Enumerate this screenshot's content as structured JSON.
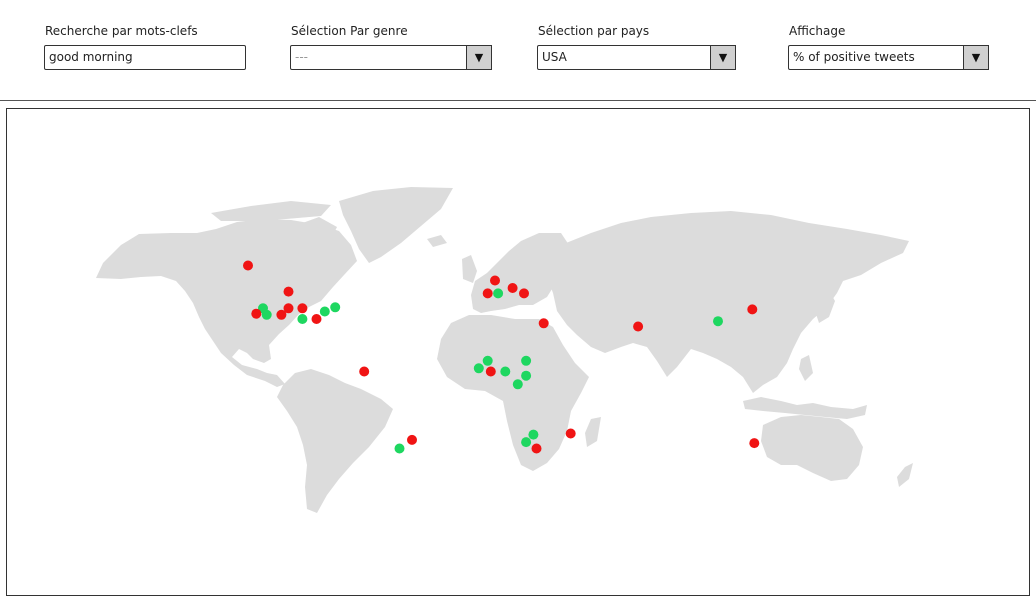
{
  "filters": {
    "keywords": {
      "label": "Recherche par mots-clefs",
      "value": "good morning"
    },
    "genre": {
      "label": "Sélection Par genre",
      "value": "---"
    },
    "country": {
      "label": "Sélection par pays",
      "value": "USA"
    },
    "display": {
      "label": "Affichage",
      "value": "% of positive tweets"
    }
  },
  "icons": {
    "dropdown": "triangle-down-icon"
  },
  "colors": {
    "positive": "#1ed760",
    "negative": "#f01414",
    "land": "#dcdcdc"
  },
  "map": {
    "markers": [
      {
        "lon": -119.5,
        "lat": 60.5,
        "sentiment": "negative"
      },
      {
        "lon": -100,
        "lat": 48.3,
        "sentiment": "negative"
      },
      {
        "lon": -112.3,
        "lat": 40.5,
        "sentiment": "positive"
      },
      {
        "lon": -100,
        "lat": 40.5,
        "sentiment": "negative"
      },
      {
        "lon": -93.3,
        "lat": 40.5,
        "sentiment": "negative"
      },
      {
        "lon": -115.5,
        "lat": 38,
        "sentiment": "negative"
      },
      {
        "lon": -110.5,
        "lat": 37.5,
        "sentiment": "positive"
      },
      {
        "lon": -103.4,
        "lat": 37.5,
        "sentiment": "negative"
      },
      {
        "lon": -93.3,
        "lat": 35.5,
        "sentiment": "positive"
      },
      {
        "lon": -86.5,
        "lat": 35.5,
        "sentiment": "negative"
      },
      {
        "lon": -82.5,
        "lat": 39,
        "sentiment": "positive"
      },
      {
        "lon": -77.5,
        "lat": 41,
        "sentiment": "positive"
      },
      {
        "lon": -63.5,
        "lat": 11,
        "sentiment": "negative"
      },
      {
        "lon": -40.5,
        "lat": -21,
        "sentiment": "negative"
      },
      {
        "lon": -46.5,
        "lat": -25,
        "sentiment": "positive"
      },
      {
        "lon": -0.5,
        "lat": 53.5,
        "sentiment": "negative"
      },
      {
        "lon": -4,
        "lat": 47.5,
        "sentiment": "negative"
      },
      {
        "lon": 1,
        "lat": 47.5,
        "sentiment": "positive"
      },
      {
        "lon": 8,
        "lat": 50,
        "sentiment": "negative"
      },
      {
        "lon": 13.5,
        "lat": 47.5,
        "sentiment": "negative"
      },
      {
        "lon": 23,
        "lat": 33.5,
        "sentiment": "negative"
      },
      {
        "lon": -4,
        "lat": 16,
        "sentiment": "positive"
      },
      {
        "lon": -8.3,
        "lat": 12.5,
        "sentiment": "positive"
      },
      {
        "lon": -2.5,
        "lat": 11,
        "sentiment": "negative"
      },
      {
        "lon": 4.5,
        "lat": 11,
        "sentiment": "positive"
      },
      {
        "lon": 14.5,
        "lat": 16,
        "sentiment": "positive"
      },
      {
        "lon": 14.5,
        "lat": 9,
        "sentiment": "positive"
      },
      {
        "lon": 10.5,
        "lat": 5,
        "sentiment": "positive"
      },
      {
        "lon": 18,
        "lat": -18.5,
        "sentiment": "positive"
      },
      {
        "lon": 14.5,
        "lat": -22,
        "sentiment": "positive"
      },
      {
        "lon": 19.5,
        "lat": -25,
        "sentiment": "negative"
      },
      {
        "lon": 36,
        "lat": -18,
        "sentiment": "negative"
      },
      {
        "lon": 68.5,
        "lat": 32,
        "sentiment": "negative"
      },
      {
        "lon": 107,
        "lat": 34.5,
        "sentiment": "positive"
      },
      {
        "lon": 123.5,
        "lat": 40,
        "sentiment": "negative"
      },
      {
        "lon": 124.5,
        "lat": -22.5,
        "sentiment": "negative"
      }
    ]
  }
}
